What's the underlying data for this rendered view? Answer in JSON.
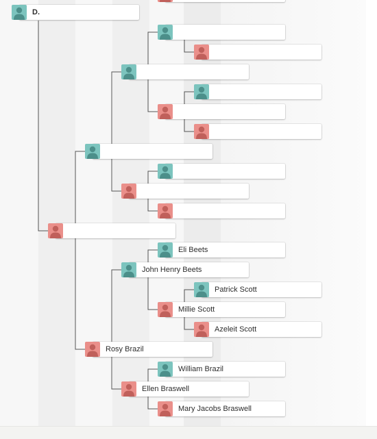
{
  "colors": {
    "male_avatar": "#7cc4be",
    "female_avatar": "#ea8f8a",
    "connector": "#555555",
    "card_bg": "#ffffff"
  },
  "icon": "person-silhouette-icon",
  "root": {
    "name": "D.",
    "gender": "male"
  },
  "gen1": {
    "mother": {
      "name": "",
      "gender": "female"
    }
  },
  "gen2": {
    "paternal_grandfather": {
      "name": "",
      "gender": "male"
    },
    "paternal_grandmother": {
      "name": "Rosy Brazil",
      "gender": "female"
    }
  },
  "gen3": {
    "ggf1": {
      "name": "",
      "gender": "male"
    },
    "ggm1": {
      "name": "",
      "gender": "female"
    },
    "ggf2": {
      "name": "John Henry Beets",
      "gender": "male"
    },
    "ggm2": {
      "name": "Ellen Braswell",
      "gender": "female"
    }
  },
  "gen4": {
    "a": {
      "name": "",
      "gender": "male"
    },
    "b": {
      "name": "",
      "gender": "female"
    },
    "c": {
      "name": "",
      "gender": "male"
    },
    "d": {
      "name": "",
      "gender": "female"
    },
    "e": {
      "name": "",
      "gender": "male"
    },
    "f": {
      "name": "",
      "gender": "female"
    },
    "g": {
      "name": "Eli Beets",
      "gender": "male"
    },
    "h": {
      "name": "Millie Scott",
      "gender": "female"
    },
    "i": {
      "name": "William Brazil",
      "gender": "male"
    },
    "j": {
      "name": "Mary Jacobs Braswell",
      "gender": "female"
    }
  },
  "gen5": {
    "a": {
      "name": "",
      "gender": "male"
    },
    "b": {
      "name": "",
      "gender": "female"
    },
    "c": {
      "name": "",
      "gender": "male"
    },
    "d": {
      "name": "",
      "gender": "female"
    },
    "e": {
      "name": "Patrick Scott",
      "gender": "male"
    },
    "f": {
      "name": "Azeleit Scott",
      "gender": "female"
    }
  }
}
